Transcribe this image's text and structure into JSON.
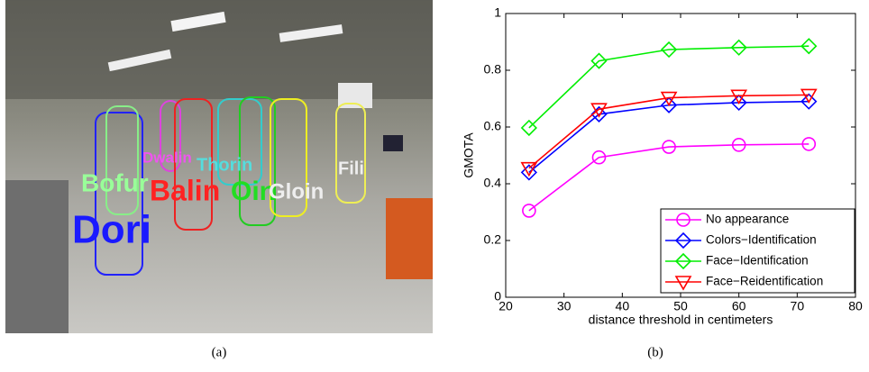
{
  "photo": {
    "labels": [
      {
        "text": "Dori",
        "color": "#1a1aff"
      },
      {
        "text": "Bofur",
        "color": "#99ff99"
      },
      {
        "text": "Dwalin",
        "color": "#ee55ee"
      },
      {
        "text": "Balin",
        "color": "#ff2222"
      },
      {
        "text": "Thorin",
        "color": "#55dddd"
      },
      {
        "text": "Oin",
        "color": "#22dd22"
      },
      {
        "text": "Gloin",
        "color": "#eeeeee"
      },
      {
        "text": "Fili",
        "color": "#eeeeee"
      }
    ],
    "box_colors": [
      "#2222ff",
      "#88ee88",
      "#dd44dd",
      "#ee2222",
      "#33cccc",
      "#22cc22",
      "#eeee22",
      "#eeee55"
    ]
  },
  "captions": [
    "(a)",
    "(b)"
  ],
  "chart_data": {
    "type": "line",
    "xlabel": "distance threshold in centimeters",
    "ylabel": "GMOTA",
    "x": [
      24,
      36,
      48,
      60,
      72
    ],
    "xlim": [
      20,
      80
    ],
    "xticks": [
      20,
      30,
      40,
      50,
      60,
      70,
      80
    ],
    "ylim": [
      0,
      1
    ],
    "yticks": [
      0,
      0.2,
      0.4,
      0.6,
      0.8,
      1
    ],
    "grid": false,
    "legend": "lower right",
    "series": [
      {
        "name": "No appearance",
        "color": "#ff00ff",
        "marker": "circle",
        "values": [
          0.305,
          0.493,
          0.53,
          0.537,
          0.54
        ]
      },
      {
        "name": "Colors−Identification",
        "color": "#0000ff",
        "marker": "diamond",
        "values": [
          0.44,
          0.645,
          0.677,
          0.686,
          0.69
        ]
      },
      {
        "name": "Face−Identification",
        "color": "#00ee00",
        "marker": "diamond",
        "values": [
          0.597,
          0.833,
          0.873,
          0.88,
          0.885
        ]
      },
      {
        "name": "Face−Reidentification",
        "color": "#ff0000",
        "marker": "triangle-down",
        "values": [
          0.455,
          0.663,
          0.703,
          0.71,
          0.713
        ]
      }
    ]
  }
}
